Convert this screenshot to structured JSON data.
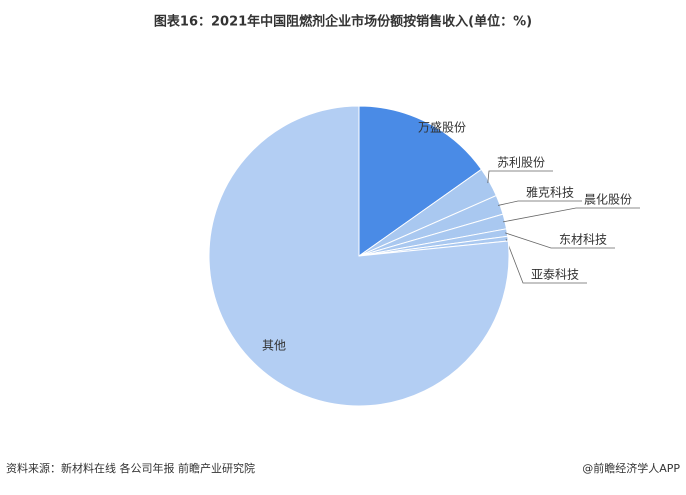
{
  "chart_data": {
    "type": "pie",
    "title": "图表16：2021年中国阻燃剂企业市场份额按销售收入(单位：%)",
    "categories": [
      "万盛股份",
      "苏利股份",
      "雅克科技",
      "晨化股份",
      "东材科技",
      "亚泰科技",
      "其他"
    ],
    "values": [
      15.2,
      3.2,
      2.1,
      1.6,
      0.8,
      0.5,
      76.6
    ],
    "colors": [
      "#4a8be6",
      "#a9c8f0",
      "#a9c8f0",
      "#a9c8f0",
      "#a9c8f0",
      "#a9c8f0",
      "#b3cef3"
    ],
    "source": "资料来源：新材料在线 各公司年报 前瞻产业研究院",
    "credit": "@前瞻经济学人APP"
  }
}
